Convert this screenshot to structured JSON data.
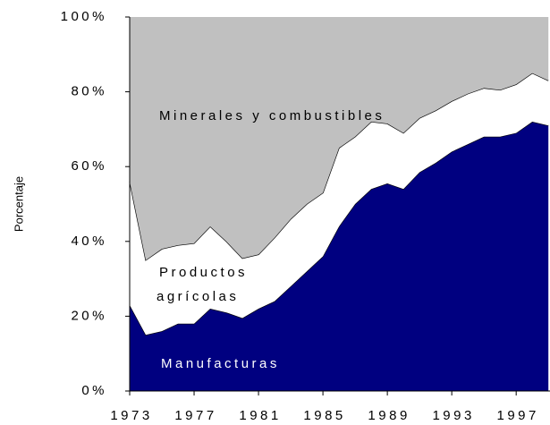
{
  "chart_data": {
    "type": "stacked_area",
    "y_label": "Porcentaje",
    "x": [
      1973,
      1974,
      1975,
      1976,
      1977,
      1978,
      1979,
      1980,
      1981,
      1982,
      1983,
      1984,
      1985,
      1986,
      1987,
      1988,
      1989,
      1990,
      1991,
      1992,
      1993,
      1994,
      1995,
      1996,
      1997,
      1998,
      1999
    ],
    "series": [
      {
        "name": "Manufacturas",
        "color": "#000080",
        "label_color": "#ffffff",
        "values": [
          23,
          15,
          16,
          18,
          18,
          22,
          21,
          19.5,
          22,
          24,
          28,
          32,
          36,
          44,
          50,
          54,
          55.5,
          54,
          58.5,
          61,
          64,
          66,
          68,
          68,
          69,
          72,
          71
        ]
      },
      {
        "name": "Productos agrícolas",
        "color": "#ffffff",
        "label_color": "#000000",
        "values": [
          33,
          20,
          22,
          21,
          21.5,
          22,
          19,
          16,
          14.5,
          17,
          18,
          18,
          17,
          21,
          18,
          18,
          16,
          15,
          14.5,
          14,
          13.5,
          13.5,
          13,
          12.5,
          13,
          13,
          12
        ]
      },
      {
        "name": "Minerales y combustibles",
        "color": "#c0c0c0",
        "label_color": "#000000",
        "values": [
          44,
          65,
          62,
          61,
          60.5,
          56,
          60,
          64.5,
          63.5,
          59,
          54,
          50,
          47,
          35,
          32,
          28,
          28.5,
          31,
          27,
          25,
          22.5,
          20.5,
          19,
          19.5,
          18,
          15,
          17
        ]
      }
    ],
    "xlim": [
      1973,
      1999.1
    ],
    "xticks": [
      1973,
      1977,
      1981,
      1985,
      1989,
      1993,
      1997
    ],
    "ylim": [
      0,
      100
    ],
    "yticks": [
      {
        "value": 0,
        "label": "0%"
      },
      {
        "value": 20,
        "label": "20%"
      },
      {
        "value": 40,
        "label": "40%"
      },
      {
        "value": 60,
        "label": "60%"
      },
      {
        "value": 80,
        "label": "80%"
      },
      {
        "value": 100,
        "label": "100%"
      }
    ]
  }
}
